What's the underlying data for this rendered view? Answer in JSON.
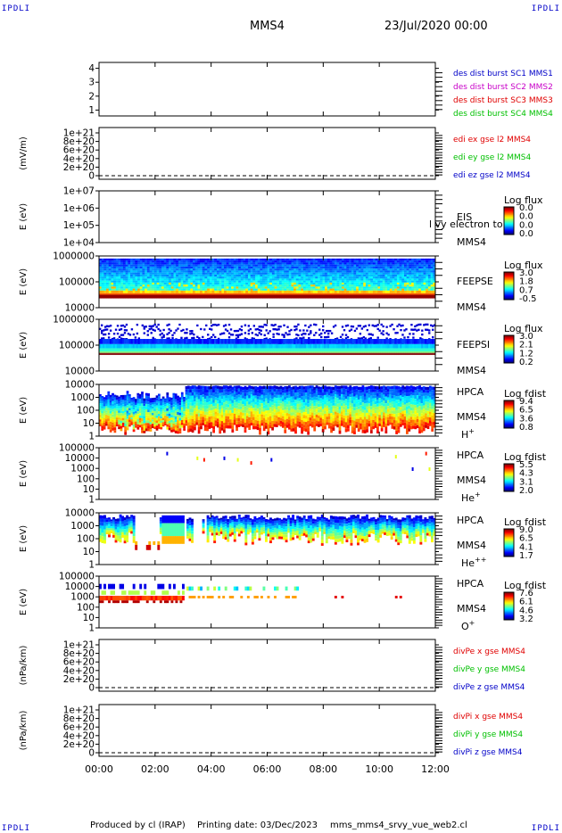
{
  "corner_label": "IPDLI",
  "header": {
    "spacecraft": "MMS4",
    "datetime": "23/Jul/2020 00:00"
  },
  "footer": {
    "producer": "Produced by cl (IRAP)",
    "printing_date": "Printing date: 03/Dec/2023",
    "script": "mms_mms4_srvy_vue_web2.cl"
  },
  "colors": {
    "mms1": "#0000c8",
    "mms2": "#c800c8",
    "mms3": "#e00000",
    "mms4": "#00c000",
    "x": "#e00000",
    "y": "#00c000",
    "z": "#0000c8"
  },
  "chart_data": [
    {
      "type": "line",
      "xlabel": "",
      "xtick_labels": [
        "00:00",
        "02:00",
        "04:00",
        "06:00",
        "08:00",
        "10:00",
        "12:00"
      ],
      "panels": [
        {
          "id": "p1",
          "ylabel": "",
          "tick_labels": [
            "4",
            "3",
            "2",
            "1"
          ],
          "ylim": [
            0.5,
            4.5
          ],
          "legend": [
            "des dist burst SC1 MMS1",
            "des dist burst SC2 MMS2",
            "des dist burst SC3 MMS3",
            "des dist burst SC4 MMS4"
          ],
          "legend_colors": [
            "#0000c8",
            "#c800c8",
            "#e00000",
            "#00c000"
          ]
        },
        {
          "id": "p2",
          "ylabel": "(mV/m)",
          "tick_labels": [
            "1e+21",
            "8e+20",
            "6e+20",
            "4e+20",
            "2e+20",
            "0"
          ],
          "ylim": [
            0,
            1.05e+21
          ],
          "zero_line": true,
          "legend": [
            "edi ex gse l2 MMS4",
            "edi ey gse l2 MMS4",
            "edi ez gse l2 MMS4"
          ],
          "legend_colors": [
            "#e00000",
            "#00c000",
            "#0000c8"
          ]
        },
        {
          "id": "p3",
          "type": "heatmap",
          "ylabel": "E (eV)",
          "tick_labels": [
            "1e+07",
            "1e+06",
            "1e+05",
            "1e+04"
          ],
          "yscale": "log",
          "side_labels": [
            "EIS",
            "MMS4"
          ],
          "overlay_text": "l vy electron to",
          "colorbar": {
            "title": "Log flux",
            "ticks": [
              "0.0",
              "0.0",
              "0.0",
              "0.0"
            ]
          }
        },
        {
          "id": "p4",
          "type": "heatmap",
          "ylabel": "E (eV)",
          "tick_labels": [
            "1000000",
            "100000",
            "10000"
          ],
          "yscale": "log",
          "side_labels": [
            "FEEPSE",
            "MMS4"
          ],
          "colorbar": {
            "title": "Log flux",
            "ticks": [
              "3.0",
              "1.8",
              "0.7",
              "-0.5"
            ]
          }
        },
        {
          "id": "p5",
          "type": "heatmap",
          "ylabel": "E (eV)",
          "tick_labels": [
            "1000000",
            "100000",
            "10000"
          ],
          "yscale": "log",
          "side_labels": [
            "FEEPSI",
            "MMS4"
          ],
          "colorbar": {
            "title": "Log flux",
            "ticks": [
              "3.0",
              "2.1",
              "1.2",
              "0.2"
            ]
          }
        },
        {
          "id": "p6",
          "type": "heatmap",
          "ylabel": "E (eV)",
          "tick_labels": [
            "10000",
            "1000",
            "100",
            "10",
            "1"
          ],
          "yscale": "log",
          "side_labels": [
            "HPCA",
            "MMS4"
          ],
          "species": "H",
          "species_sup": "+",
          "colorbar": {
            "title": "Log fdist",
            "ticks": [
              "9.4",
              "6.5",
              "3.6",
              "0.8"
            ]
          }
        },
        {
          "id": "p7",
          "type": "heatmap",
          "ylabel": "E (eV)",
          "tick_labels": [
            "100000",
            "10000",
            "1000",
            "100",
            "10",
            "1"
          ],
          "yscale": "log",
          "side_labels": [
            "HPCA",
            "MMS4"
          ],
          "species": "He",
          "species_sup": "+",
          "colorbar": {
            "title": "Log fdist",
            "ticks": [
              "5.5",
              "4.3",
              "3.1",
              "2.0"
            ]
          }
        },
        {
          "id": "p8",
          "type": "heatmap",
          "ylabel": "E (eV)",
          "tick_labels": [
            "10000",
            "1000",
            "100",
            "10",
            "1"
          ],
          "yscale": "log",
          "side_labels": [
            "HPCA",
            "MMS4"
          ],
          "species": "He",
          "species_sup": "++",
          "colorbar": {
            "title": "Log fdist",
            "ticks": [
              "9.0",
              "6.5",
              "4.1",
              "1.7"
            ]
          }
        },
        {
          "id": "p9",
          "type": "heatmap",
          "ylabel": "E (eV)",
          "tick_labels": [
            "100000",
            "10000",
            "1000",
            "100",
            "10",
            "1"
          ],
          "yscale": "log",
          "side_labels": [
            "HPCA",
            "MMS4"
          ],
          "species": "O",
          "species_sup": "+",
          "colorbar": {
            "title": "Log fdist",
            "ticks": [
              "7.6",
              "6.1",
              "4.6",
              "3.2"
            ]
          }
        },
        {
          "id": "p10",
          "ylabel": "(nPa/km)",
          "tick_labels": [
            "1e+21",
            "8e+20",
            "6e+20",
            "4e+20",
            "2e+20",
            "0"
          ],
          "ylim": [
            0,
            1.05e+21
          ],
          "zero_line": true,
          "legend": [
            "divPe x gse MMS4",
            "divPe y gse MMS4",
            "divPe z gse MMS4"
          ],
          "legend_colors": [
            "#e00000",
            "#00c000",
            "#0000c8"
          ]
        },
        {
          "id": "p11",
          "ylabel": "(nPa/km)",
          "tick_labels": [
            "1e+21",
            "8e+20",
            "6e+20",
            "4e+20",
            "2e+20",
            "0"
          ],
          "ylim": [
            0,
            1.05e+21
          ],
          "zero_line": true,
          "legend": [
            "divPi x gse MMS4",
            "divPi y gse MMS4",
            "divPi z gse MMS4"
          ],
          "legend_colors": [
            "#e00000",
            "#00c000",
            "#0000c8"
          ]
        }
      ]
    }
  ]
}
